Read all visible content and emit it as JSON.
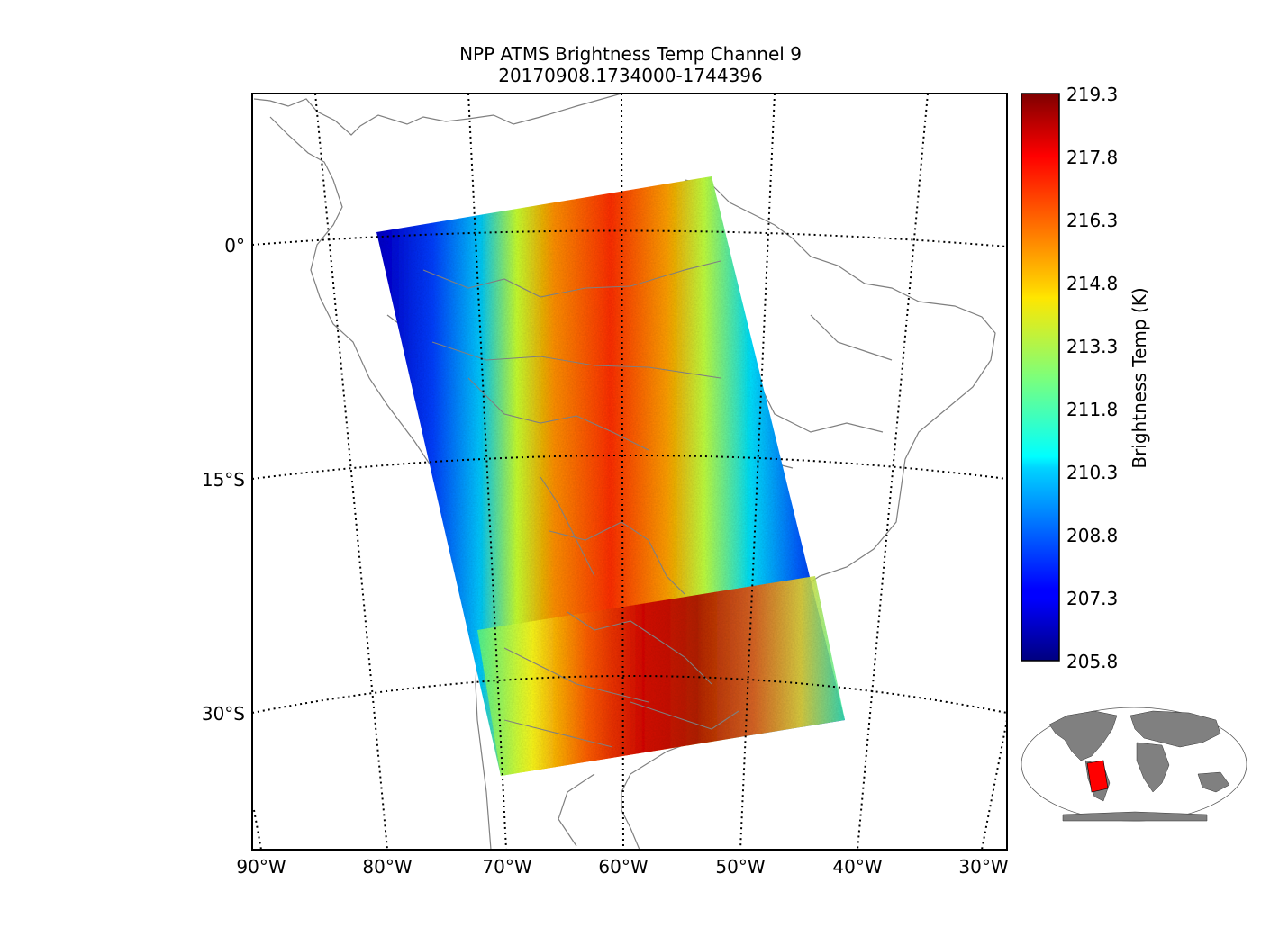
{
  "title": {
    "line1": "NPP ATMS Brightness Temp Channel 9",
    "line2": "20170908.1734000-1744396"
  },
  "map": {
    "projection": "orthographic",
    "longitude_labels": [
      "90°W",
      "80°W",
      "70°W",
      "60°W",
      "50°W",
      "40°W",
      "30°W"
    ],
    "latitude_labels": [
      "0°",
      "15°S",
      "30°S"
    ],
    "coastline_color": "#7f7f7f",
    "graticule_style": "dotted"
  },
  "colorbar": {
    "label": "Brightness Temp (K)",
    "tick_labels": [
      "219.3",
      "217.8",
      "216.3",
      "214.8",
      "213.3",
      "211.8",
      "210.3",
      "208.8",
      "207.3",
      "205.8"
    ],
    "min": 205.8,
    "max": 219.3,
    "colormap": "jet"
  },
  "swath": {
    "description_colors": [
      "#00008f",
      "#0000ff",
      "#00a0ff",
      "#00ffe0",
      "#80ff80",
      "#ffff00",
      "#ff8000",
      "#ff2000",
      "#800000"
    ]
  },
  "inset": {
    "land_color": "#808080",
    "highlight_color": "#ff0000"
  }
}
